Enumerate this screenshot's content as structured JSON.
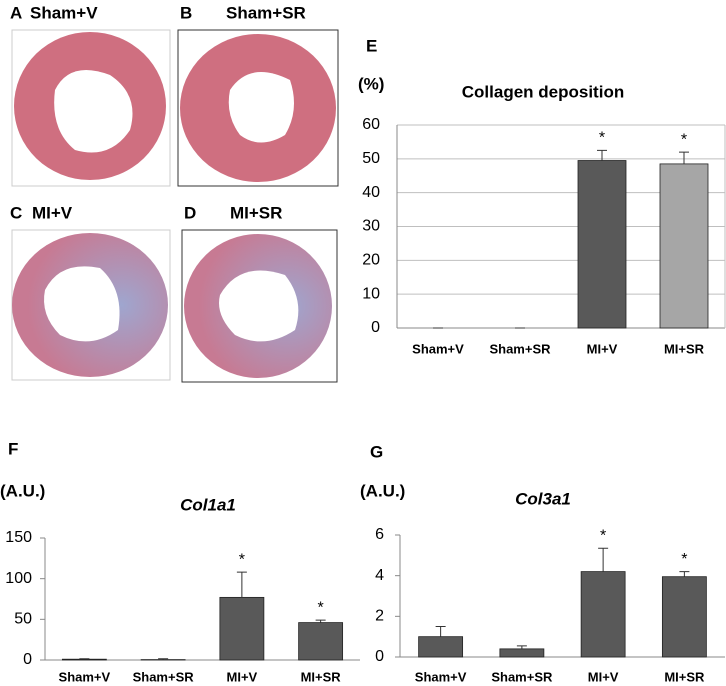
{
  "panels": [
    {
      "letter": "A",
      "label": "Sham+V"
    },
    {
      "letter": "B",
      "label": "Sham+SR"
    },
    {
      "letter": "C",
      "label": "MI+V"
    },
    {
      "letter": "D",
      "label": "MI+SR"
    }
  ],
  "chart_data": [
    {
      "type": "bar",
      "panel": "E",
      "title": "Collagen deposition",
      "y_label": "(%)",
      "categories": [
        "Sham+V",
        "Sham+SR",
        "MI+V",
        "MI+SR"
      ],
      "values": [
        0,
        0,
        49.5,
        48.5
      ],
      "errors": [
        0,
        0,
        3,
        3.5
      ],
      "colors": [
        "#595959",
        "#595959",
        "#595959",
        "#a6a6a6"
      ],
      "significance": [
        null,
        null,
        "*",
        "*"
      ],
      "ylim": [
        0,
        60
      ],
      "yticks": [
        0,
        10,
        20,
        30,
        40,
        50,
        60
      ],
      "grid": true
    },
    {
      "type": "bar",
      "panel": "F",
      "title": "Col1a1",
      "y_label": "(A.U.)",
      "categories": [
        "Sham+V",
        "Sham+SR",
        "MI+V",
        "MI+SR"
      ],
      "values": [
        1,
        0.5,
        77,
        46
      ],
      "errors": [
        0.5,
        1,
        31,
        3
      ],
      "colors": [
        "#595959",
        "#595959",
        "#595959",
        "#595959"
      ],
      "significance": [
        null,
        null,
        "*",
        "*"
      ],
      "ylim": [
        0,
        150
      ],
      "yticks": [
        0,
        50,
        100,
        150
      ],
      "grid": false
    },
    {
      "type": "bar",
      "panel": "G",
      "title": "Col3a1",
      "y_label": "(A.U.)",
      "categories": [
        "Sham+V",
        "Sham+SR",
        "MI+V",
        "MI+SR"
      ],
      "values": [
        1,
        0.4,
        4.2,
        3.95
      ],
      "errors": [
        0.5,
        0.15,
        1.15,
        0.25
      ],
      "colors": [
        "#595959",
        "#595959",
        "#595959",
        "#595959"
      ],
      "significance": [
        null,
        null,
        "*",
        "*"
      ],
      "ylim": [
        0,
        6
      ],
      "yticks": [
        0,
        2,
        4,
        6
      ],
      "grid": false
    }
  ]
}
